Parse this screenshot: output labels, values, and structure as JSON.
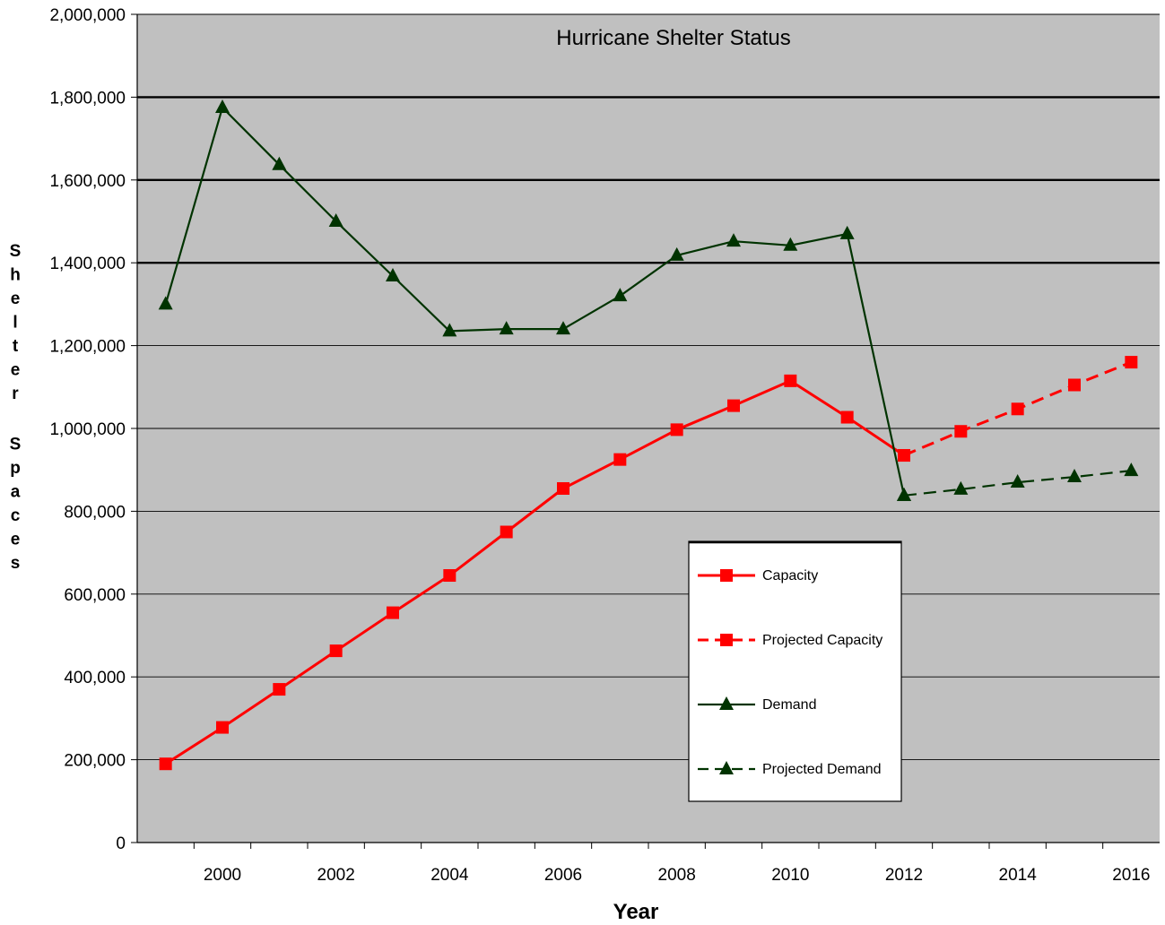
{
  "chart_data": {
    "type": "line",
    "title": "Hurricane Shelter Status",
    "xlabel": "Year",
    "ylabel": "Shelter Spaces",
    "ylim": [
      0,
      2000000
    ],
    "y_ticks": [
      "0",
      "200,000",
      "400,000",
      "600,000",
      "800,000",
      "1,000,000",
      "1,200,000",
      "1,400,000",
      "1,600,000",
      "1,800,000",
      "2,000,000"
    ],
    "x_ticks": [
      "2000",
      "2002",
      "2004",
      "2006",
      "2008",
      "2010",
      "2012",
      "2014",
      "2016"
    ],
    "x": [
      1999,
      2000,
      2001,
      2002,
      2003,
      2004,
      2005,
      2006,
      2007,
      2008,
      2009,
      2010,
      2011,
      2012,
      2013,
      2014,
      2015,
      2016
    ],
    "legend_position": "lower-center",
    "series": [
      {
        "name": "Capacity",
        "color": "#ff0000",
        "style": "solid",
        "marker": "square",
        "points": [
          [
            1999,
            190000
          ],
          [
            2000,
            278000
          ],
          [
            2001,
            370000
          ],
          [
            2002,
            463000
          ],
          [
            2003,
            555000
          ],
          [
            2004,
            645000
          ],
          [
            2005,
            750000
          ],
          [
            2006,
            855000
          ],
          [
            2007,
            925000
          ],
          [
            2008,
            997000
          ],
          [
            2009,
            1055000
          ],
          [
            2010,
            1115000
          ],
          [
            2011,
            1027000
          ],
          [
            2012,
            935000
          ]
        ]
      },
      {
        "name": "Projected Capacity",
        "color": "#ff0000",
        "style": "dashed",
        "marker": "square",
        "points": [
          [
            2012,
            935000
          ],
          [
            2013,
            993000
          ],
          [
            2014,
            1047000
          ],
          [
            2015,
            1105000
          ],
          [
            2016,
            1160000
          ]
        ]
      },
      {
        "name": "Demand",
        "color": "#003300",
        "style": "solid",
        "marker": "triangle",
        "points": [
          [
            1999,
            1300000
          ],
          [
            2000,
            1775000
          ],
          [
            2001,
            1637000
          ],
          [
            2002,
            1500000
          ],
          [
            2003,
            1368000
          ],
          [
            2004,
            1235000
          ],
          [
            2005,
            1240000
          ],
          [
            2006,
            1240000
          ],
          [
            2007,
            1320000
          ],
          [
            2008,
            1418000
          ],
          [
            2009,
            1452000
          ],
          [
            2010,
            1442000
          ],
          [
            2011,
            1470000
          ],
          [
            2012,
            838000
          ]
        ]
      },
      {
        "name": "Projected Demand",
        "color": "#003300",
        "style": "dashed",
        "marker": "triangle",
        "points": [
          [
            2012,
            838000
          ],
          [
            2013,
            853000
          ],
          [
            2014,
            870000
          ],
          [
            2015,
            883000
          ],
          [
            2016,
            898000
          ]
        ]
      }
    ]
  }
}
